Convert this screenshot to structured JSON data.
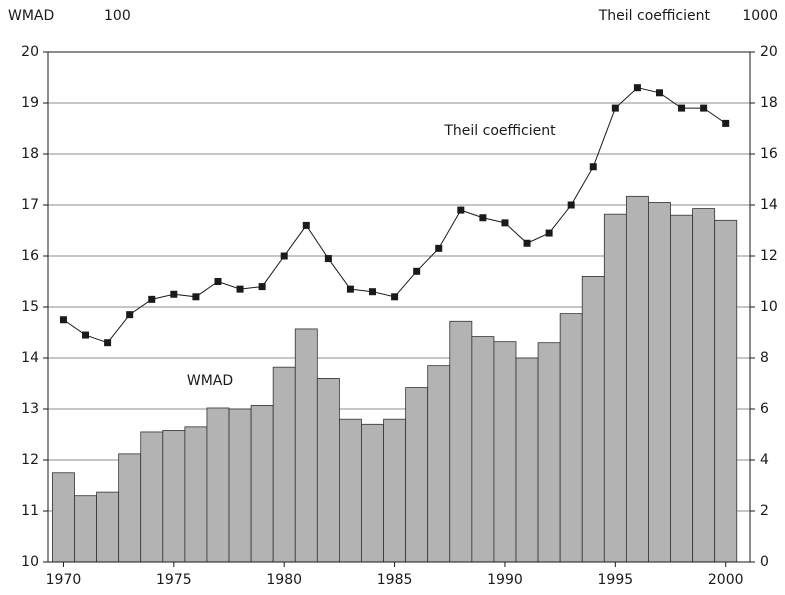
{
  "chart_data": {
    "type": "bar_line",
    "y_label": "WMAD",
    "y_label_unit": "100",
    "y2_label": "Theil coefficient",
    "y2_label_unit": "1000",
    "x": [
      1970,
      1971,
      1972,
      1973,
      1974,
      1975,
      1976,
      1977,
      1978,
      1979,
      1980,
      1981,
      1982,
      1983,
      1984,
      1985,
      1986,
      1987,
      1988,
      1989,
      1990,
      1991,
      1992,
      1993,
      1994,
      1995,
      1996,
      1997,
      1998,
      1999,
      2000
    ],
    "series": [
      {
        "name": "WMAD",
        "type": "bar",
        "color": "#b3b3b3",
        "axis": "y",
        "values": [
          11.75,
          11.3,
          11.37,
          12.12,
          12.55,
          12.58,
          12.65,
          13.02,
          13.0,
          13.07,
          13.82,
          14.57,
          13.6,
          12.8,
          12.7,
          12.8,
          13.42,
          13.85,
          14.72,
          14.42,
          14.32,
          14.0,
          14.3,
          14.87,
          15.6,
          16.82,
          17.17,
          17.05,
          16.8,
          16.93,
          16.7
        ]
      },
      {
        "name": "Theil coefficient",
        "type": "line",
        "color": "#1a1a1a",
        "axis": "y2",
        "values": [
          9.5,
          8.9,
          8.6,
          9.7,
          10.3,
          10.5,
          10.4,
          11.0,
          10.7,
          10.8,
          12.0,
          13.2,
          11.9,
          10.7,
          10.6,
          10.4,
          11.4,
          12.3,
          13.8,
          13.5,
          13.3,
          12.5,
          12.9,
          14.0,
          15.5,
          17.8,
          18.6,
          18.4,
          17.8,
          17.8,
          17.2
        ]
      }
    ],
    "xlim": [
      1969.3,
      2001.1
    ],
    "xticks": [
      1970,
      1975,
      1980,
      1985,
      1990,
      1995,
      2000
    ],
    "ylim": [
      10,
      20
    ],
    "yticks": [
      10,
      11,
      12,
      13,
      14,
      15,
      16,
      17,
      18,
      19,
      20
    ],
    "y2lim": [
      0,
      20
    ],
    "y2ticks": [
      0,
      2,
      4,
      6,
      8,
      10,
      12,
      14,
      16,
      18,
      20
    ],
    "grid": true
  }
}
